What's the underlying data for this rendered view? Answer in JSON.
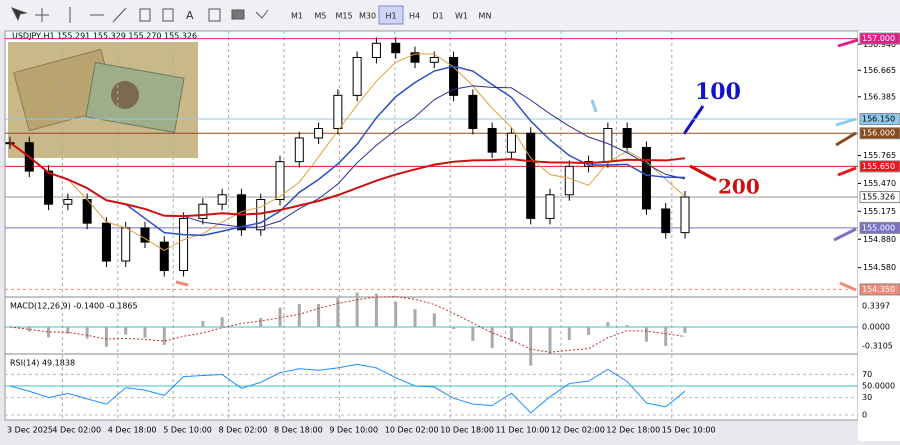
{
  "toolbar": {
    "timeframes": [
      "M1",
      "M5",
      "M15",
      "M30",
      "H1",
      "H4",
      "D1",
      "W1",
      "MN"
    ],
    "active": "H1"
  },
  "chart": {
    "header": "USDJPY,H1  155.291 155.329 155.270 155.326",
    "ylim": [
      154.27,
      157.08
    ],
    "price_ticks": [
      {
        "value": 156.94,
        "label": "156.940"
      },
      {
        "value": 156.665,
        "label": "156.665"
      },
      {
        "value": 156.385,
        "label": "156.385"
      },
      {
        "value": 155.765,
        "label": "155.765"
      },
      {
        "value": 155.47,
        "label": "155.470"
      },
      {
        "value": 155.175,
        "label": "155.175"
      },
      {
        "value": 154.88,
        "label": "154.880"
      },
      {
        "value": 154.58,
        "label": "154.580"
      }
    ],
    "levels": [
      {
        "value": 157.0,
        "label": "157.000",
        "color": "#e0208a"
      },
      {
        "value": 156.15,
        "label": "156.150",
        "color": "#8ec9ee"
      },
      {
        "value": 156.0,
        "label": "156.000",
        "color": "#8b4a1c"
      },
      {
        "value": 155.65,
        "label": "155.650",
        "color": "#e81818"
      },
      {
        "value": 155.326,
        "label": "155.326",
        "color": "#ffffff"
      },
      {
        "value": 155.0,
        "label": "155.000",
        "color": "#7b72c4"
      },
      {
        "value": 154.35,
        "label": "154.350",
        "color": "#f08a7a"
      }
    ],
    "closes": [
      155.9,
      155.6,
      155.25,
      155.3,
      155.05,
      154.65,
      155.0,
      154.85,
      154.55,
      155.1,
      155.25,
      155.35,
      154.98,
      155.3,
      155.7,
      155.95,
      156.05,
      156.4,
      156.8,
      156.95,
      156.85,
      156.75,
      156.8,
      156.4,
      156.05,
      155.8,
      156.0,
      155.1,
      155.35,
      155.65,
      155.7,
      156.05,
      155.85,
      155.2,
      154.95,
      155.326
    ],
    "annotations": [
      "100",
      "200"
    ],
    "time_labels": [
      "3 Dec 2025",
      "4 Dec 02:00",
      "4 Dec 18:00",
      "5 Dec 10:00",
      "8 Dec 02:00",
      "8 Dec 18:00",
      "9 Dec 10:00",
      "10 Dec 02:00",
      "10 Dec 18:00",
      "11 Dec 10:00",
      "12 Dec 02:00",
      "12 Dec 18:00",
      "15 Dec 10:00"
    ]
  },
  "macd": {
    "label": "MACD(12,26,9) -0.1400 -0.1865",
    "ticks": [
      {
        "value": 0.3397,
        "label": "0.3397"
      },
      {
        "value": 0,
        "label": "0.0000"
      },
      {
        "value": -0.3105,
        "label": "-0.3105"
      }
    ]
  },
  "rsi": {
    "label": "RSI(14) 49.1838",
    "ticks": [
      70,
      {
        "value": 50,
        "label": "50.0000"
      },
      30,
      0
    ]
  }
}
